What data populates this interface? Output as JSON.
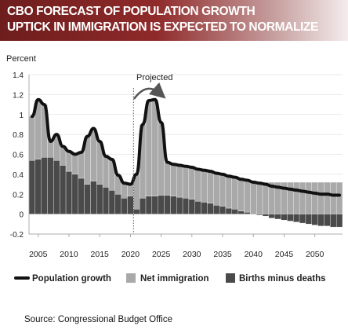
{
  "header": {
    "title_line1": "CBO FORECAST OF POPULATION GROWTH",
    "title_line2": "UPTICK IN IMMIGRATION IS EXPECTED TO NORMALIZE"
  },
  "source": "Source: Congressional Budget Office",
  "colors": {
    "net_immigration": "#a9a9a9",
    "births_minus_deaths": "#4a4a4a",
    "population_growth": "#111111",
    "banner": "#8f2a2a"
  },
  "chart_data": {
    "type": "area",
    "title": "",
    "ylabel": "Percent",
    "xlabel": "",
    "ylim": [
      -0.2,
      1.4
    ],
    "yticks": [
      "-0.2",
      "0",
      "0.2",
      "0.4",
      "0.6",
      "0.8",
      "1",
      "1.2",
      "1.4"
    ],
    "xticks": [
      "2005",
      "2010",
      "2015",
      "2020",
      "2025",
      "2030",
      "2035",
      "2040",
      "2045",
      "2050"
    ],
    "projected_label": "Projected",
    "projection_start": 2020.5,
    "legend_position": "bottom",
    "x": [
      2004,
      2005,
      2006,
      2007,
      2008,
      2009,
      2010,
      2011,
      2012,
      2013,
      2014,
      2015,
      2016,
      2017,
      2018,
      2019,
      2020,
      2021,
      2022,
      2023,
      2024,
      2025,
      2026,
      2027,
      2028,
      2029,
      2030,
      2031,
      2032,
      2033,
      2034,
      2035,
      2036,
      2037,
      2038,
      2039,
      2040,
      2041,
      2042,
      2043,
      2044,
      2045,
      2046,
      2047,
      2048,
      2049,
      2050,
      2051,
      2052,
      2053,
      2054
    ],
    "series": [
      {
        "name": "Population growth",
        "kind": "line",
        "values": [
          0.98,
          1.15,
          1.1,
          0.73,
          0.8,
          0.68,
          0.63,
          0.6,
          0.62,
          0.78,
          0.86,
          0.73,
          0.58,
          0.55,
          0.39,
          0.31,
          0.3,
          0.4,
          0.9,
          1.14,
          1.15,
          0.92,
          0.52,
          0.5,
          0.49,
          0.48,
          0.47,
          0.45,
          0.44,
          0.43,
          0.41,
          0.4,
          0.38,
          0.37,
          0.35,
          0.34,
          0.32,
          0.31,
          0.3,
          0.28,
          0.27,
          0.26,
          0.25,
          0.24,
          0.23,
          0.22,
          0.21,
          0.2,
          0.2,
          0.19,
          0.19
        ]
      },
      {
        "name": "Net immigration",
        "kind": "bar",
        "values": [
          0.44,
          0.6,
          0.53,
          0.16,
          0.26,
          0.19,
          0.2,
          0.2,
          0.26,
          0.48,
          0.53,
          0.43,
          0.31,
          0.31,
          0.19,
          0.15,
          0.12,
          0.35,
          0.74,
          0.96,
          0.97,
          0.73,
          0.33,
          0.32,
          0.32,
          0.32,
          0.32,
          0.32,
          0.32,
          0.32,
          0.32,
          0.32,
          0.32,
          0.32,
          0.32,
          0.32,
          0.32,
          0.32,
          0.32,
          0.32,
          0.32,
          0.32,
          0.32,
          0.32,
          0.32,
          0.32,
          0.32,
          0.32,
          0.32,
          0.32,
          0.32
        ]
      },
      {
        "name": "Births minus deaths",
        "kind": "bar",
        "values": [
          0.54,
          0.55,
          0.57,
          0.57,
          0.54,
          0.49,
          0.43,
          0.4,
          0.36,
          0.3,
          0.33,
          0.3,
          0.27,
          0.24,
          0.2,
          0.16,
          0.18,
          0.05,
          0.16,
          0.18,
          0.18,
          0.19,
          0.19,
          0.18,
          0.17,
          0.16,
          0.15,
          0.13,
          0.12,
          0.11,
          0.09,
          0.08,
          0.06,
          0.05,
          0.03,
          0.02,
          0.0,
          -0.01,
          -0.02,
          -0.04,
          -0.05,
          -0.06,
          -0.07,
          -0.08,
          -0.09,
          -0.1,
          -0.11,
          -0.12,
          -0.12,
          -0.13,
          -0.13
        ]
      }
    ]
  }
}
